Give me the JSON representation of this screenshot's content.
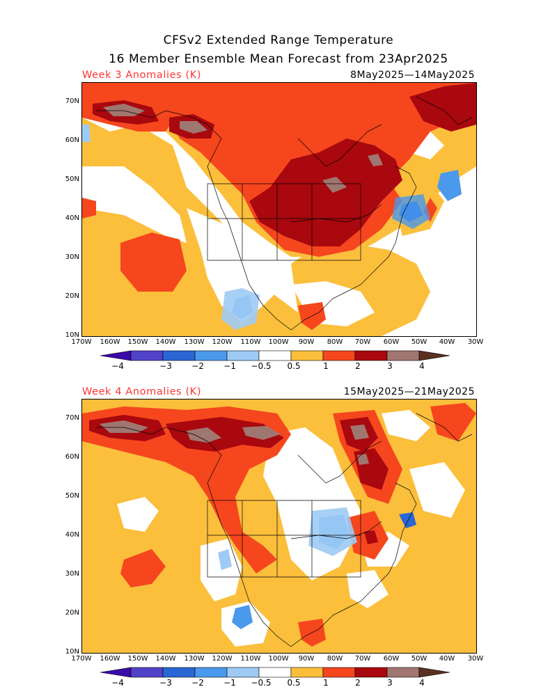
{
  "title_line1": "CFSv2 Extended Range Temperature",
  "title_line2": "16 Member Ensemble Mean Forecast from 23Apr2025",
  "panels": [
    {
      "label": "Week 3 Anomalies (K)",
      "dates": "8May2025—14May2025"
    },
    {
      "label": "Week 4 Anomalies (K)",
      "dates": "15May2025—21May2025"
    }
  ],
  "lat_labels": [
    "70N",
    "60N",
    "50N",
    "40N",
    "30N",
    "20N",
    "10N"
  ],
  "lon_labels": [
    "170W",
    "160W",
    "150W",
    "140W",
    "130W",
    "120W",
    "110W",
    "100W",
    "90W",
    "80W",
    "70W",
    "60W",
    "50W",
    "40W",
    "30W"
  ],
  "colorbar": {
    "labels": [
      "−4",
      "−3",
      "−2",
      "−1",
      "−0.5",
      "0.5",
      "1",
      "2",
      "3",
      "4"
    ],
    "colors": {
      "lt_m4": "#3a0aa8",
      "m4_m3": "#5043c8",
      "m3_m2": "#2a66d4",
      "m2_m1": "#4a99ec",
      "m1_m05": "#9ecbf5",
      "m05_05": "#ffffff",
      "p05_1": "#fbbf3c",
      "p1_2": "#f5461e",
      "p2_3": "#a8080e",
      "p3_4": "#a07770",
      "gt_4": "#5a3020"
    }
  }
}
